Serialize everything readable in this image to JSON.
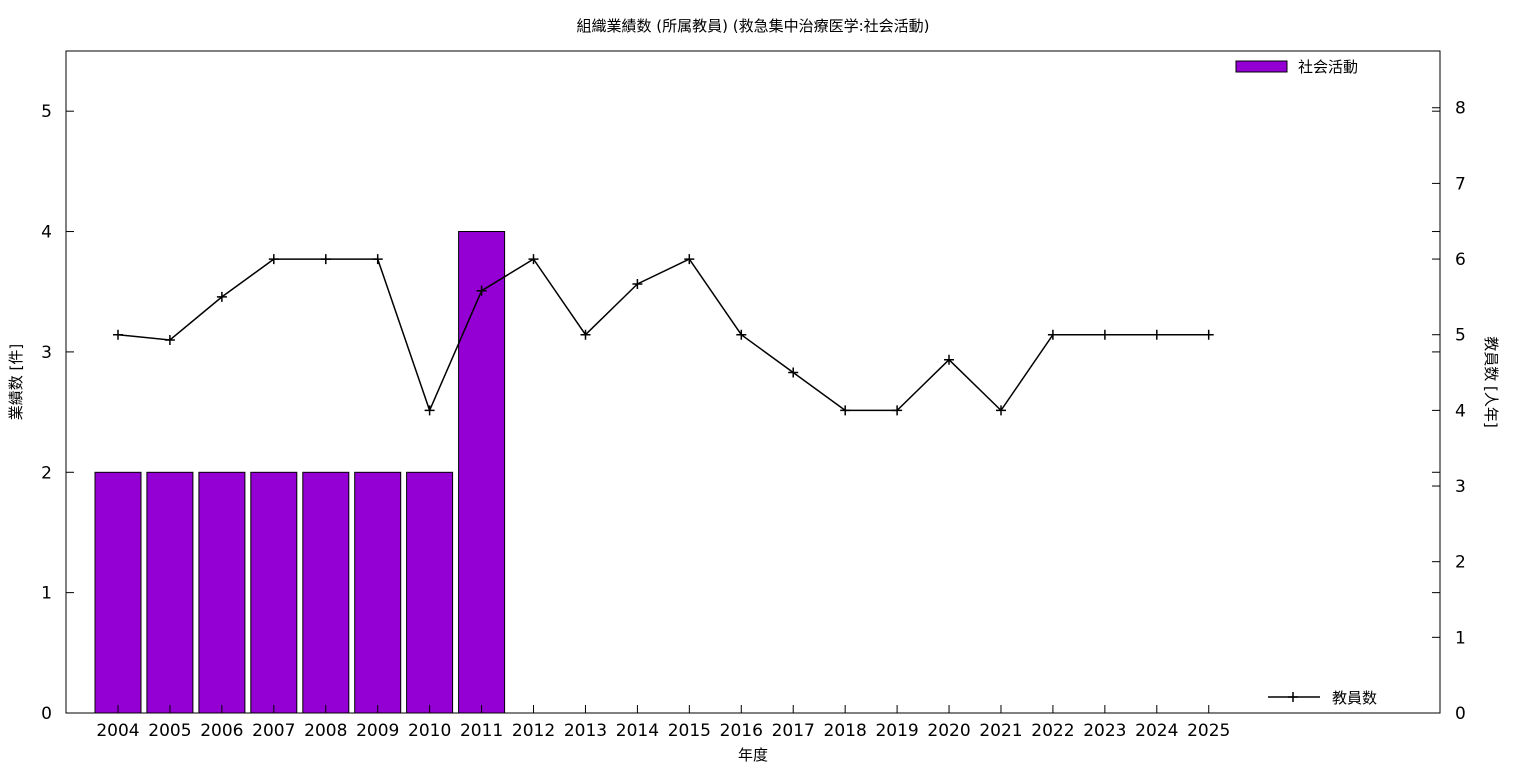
{
  "chart_data": {
    "type": "bar",
    "title": "組織業績数 (所属教員) (救急集中治療医学:社会活動)",
    "xlabel": "年度",
    "ylabel": "業績数 [件]",
    "y2label": "教員数 [人年]",
    "categories": [
      "2004",
      "2005",
      "2006",
      "2007",
      "2008",
      "2009",
      "2010",
      "2011",
      "2012",
      "2013",
      "2014",
      "2015",
      "2016",
      "2017",
      "2018",
      "2019",
      "2020",
      "2021",
      "2022",
      "2023",
      "2024",
      "2025"
    ],
    "series": [
      {
        "name": "社会活動",
        "type": "bar",
        "axis": "left",
        "color": "#9400D3",
        "values": [
          2,
          2,
          2,
          2,
          2,
          2,
          2,
          4,
          0,
          0,
          0,
          0,
          0,
          0,
          0,
          0,
          0,
          0,
          0,
          0,
          0,
          0
        ]
      },
      {
        "name": "教員数",
        "type": "line",
        "axis": "right",
        "color": "#000000",
        "marker": "plus",
        "values": [
          5,
          4.93,
          5.5,
          6,
          6,
          6,
          4,
          5.58,
          6,
          5,
          5.67,
          6,
          5,
          4.5,
          4,
          4,
          4.67,
          4,
          5,
          5,
          5,
          5
        ]
      }
    ],
    "yticks": [
      0,
      1,
      2,
      3,
      4,
      5
    ],
    "y2ticks": [
      0,
      1,
      2,
      3,
      4,
      5,
      6,
      7,
      8
    ],
    "ylim": [
      0,
      5.5
    ],
    "y2lim": [
      0,
      8.75
    ],
    "legend": [
      "top-right",
      "bottom-right"
    ],
    "grid": false
  }
}
